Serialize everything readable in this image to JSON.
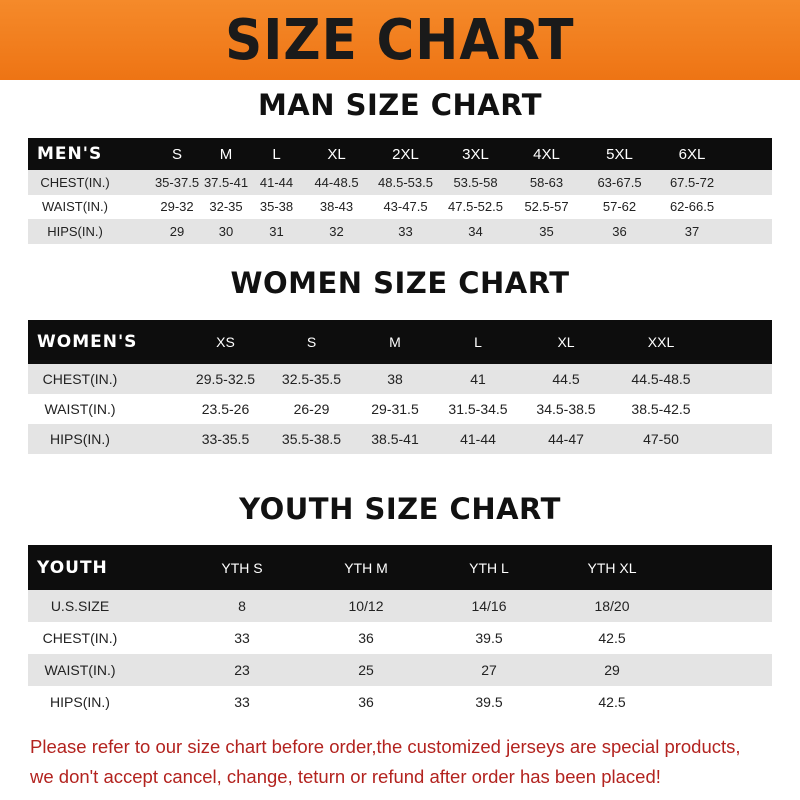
{
  "banner": {
    "title": "SIZE CHART",
    "color": "#f07a1a"
  },
  "men": {
    "title": "MAN SIZE CHART",
    "header": [
      "MEN'S",
      "S",
      "M",
      "L",
      "XL",
      "2XL",
      "3XL",
      "4XL",
      "5XL",
      "6XL"
    ],
    "rows": [
      [
        "CHEST(IN.)",
        "35-37.5",
        "37.5-41",
        "41-44",
        "44-48.5",
        "48.5-53.5",
        "53.5-58",
        "58-63",
        "63-67.5",
        "67.5-72"
      ],
      [
        "WAIST(IN.)",
        "29-32",
        "32-35",
        "35-38",
        "38-43",
        "43-47.5",
        "47.5-52.5",
        "52.5-57",
        "57-62",
        "62-66.5"
      ],
      [
        "HIPS(IN.)",
        "29",
        "30",
        "31",
        "32",
        "33",
        "34",
        "35",
        "36",
        "37"
      ]
    ]
  },
  "women": {
    "title": "WOMEN SIZE CHART",
    "header": [
      "WOMEN'S",
      "XS",
      "S",
      "M",
      "L",
      "XL",
      "XXL"
    ],
    "rows": [
      [
        "CHEST(IN.)",
        "29.5-32.5",
        "32.5-35.5",
        "38",
        "41",
        "44.5",
        "44.5-48.5"
      ],
      [
        "WAIST(IN.)",
        "23.5-26",
        "26-29",
        "29-31.5",
        "31.5-34.5",
        "34.5-38.5",
        "38.5-42.5"
      ],
      [
        "HIPS(IN.)",
        "33-35.5",
        "35.5-38.5",
        "38.5-41",
        "41-44",
        "44-47",
        "47-50"
      ]
    ]
  },
  "youth": {
    "title": "YOUTH SIZE CHART",
    "header": [
      "YOUTH",
      "YTH S",
      "YTH M",
      "YTH L",
      "YTH XL"
    ],
    "rows": [
      [
        "U.S.SIZE",
        "8",
        "10/12",
        "14/16",
        "18/20"
      ],
      [
        "CHEST(IN.)",
        "33",
        "36",
        "39.5",
        "42.5"
      ],
      [
        "WAIST(IN.)",
        "23",
        "25",
        "27",
        "29"
      ],
      [
        "HIPS(IN.)",
        "33",
        "36",
        "39.5",
        "42.5"
      ]
    ]
  },
  "note": {
    "line1": "Please refer to our size chart before order,the customized jerseys are special products,",
    "line2": "we don't accept cancel, change, teturn or refund after order has been placed!",
    "color": "#b3231f"
  }
}
